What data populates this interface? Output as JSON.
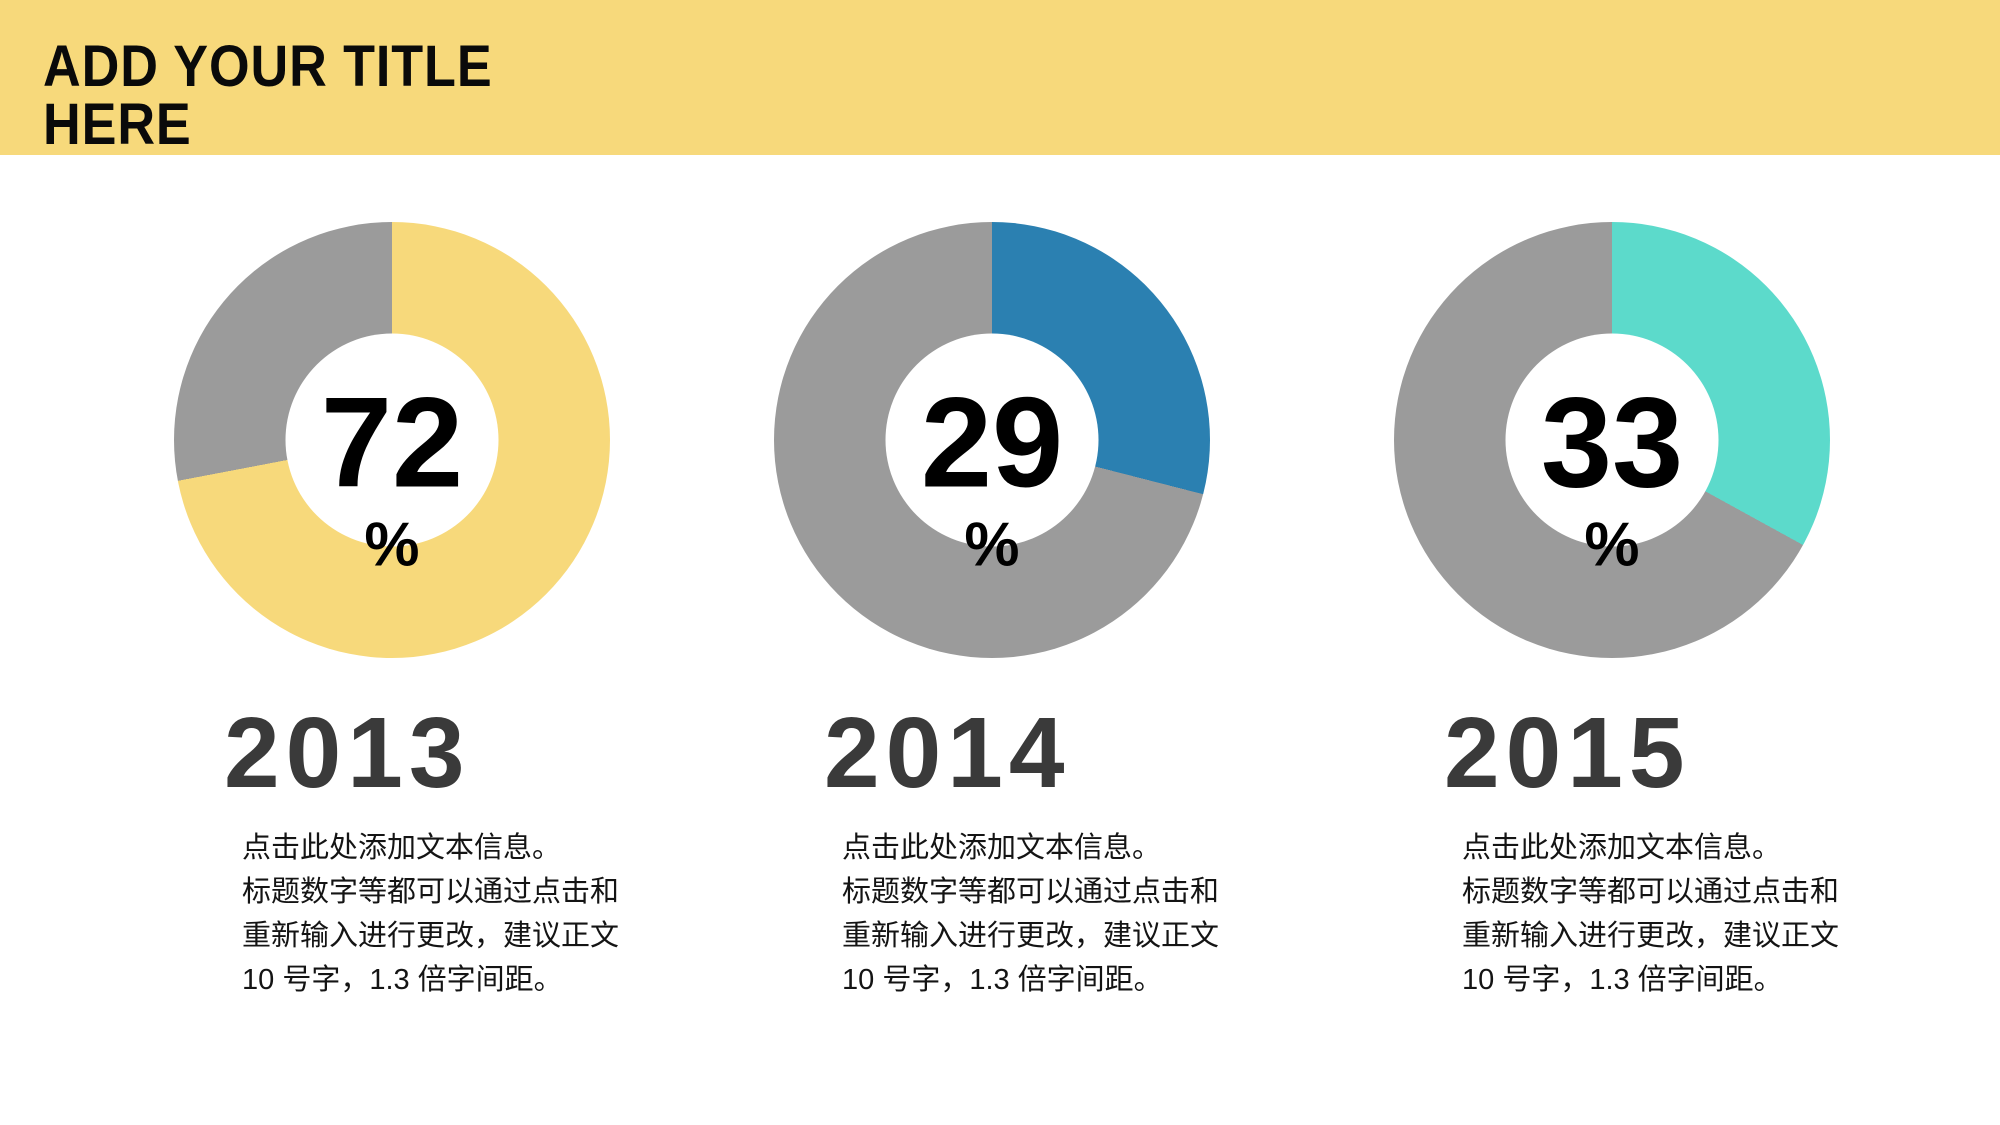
{
  "header": {
    "title": "ADD YOUR TITLE\nHERE",
    "background_color": "#F7D97B"
  },
  "chart_data": [
    {
      "type": "donut",
      "title": "2013",
      "value": 72,
      "unit": "%",
      "slice_color": "#F7D97B",
      "track_color": "#9B9B9B",
      "start": "top",
      "direction": "clockwise",
      "inner_radius_ratio": 0.49
    },
    {
      "type": "donut",
      "title": "2014",
      "value": 29,
      "unit": "%",
      "slice_color": "#2B80B1",
      "track_color": "#9B9B9B",
      "start": "top",
      "direction": "clockwise",
      "inner_radius_ratio": 0.49
    },
    {
      "type": "donut",
      "title": "2015",
      "value": 33,
      "unit": "%",
      "slice_color": "#5CDACB",
      "track_color": "#9B9B9B",
      "start": "top",
      "direction": "clockwise",
      "inner_radius_ratio": 0.49
    }
  ],
  "columns": [
    {
      "value": "72",
      "percent_sign": "%",
      "year": "2013",
      "description": "点击此处添加文本信息。\n标题数字等都可以通过点击和\n重新输入进行更改，建议正文\n10 号字，1.3 倍字间距。"
    },
    {
      "value": "29",
      "percent_sign": "%",
      "year": "2014",
      "description": "点击此处添加文本信息。\n标题数字等都可以通过点击和\n重新输入进行更改，建议正文\n10 号字，1.3 倍字间距。"
    },
    {
      "value": "33",
      "percent_sign": "%",
      "year": "2015",
      "description": "点击此处添加文本信息。\n标题数字等都可以通过点击和\n重新输入进行更改，建议正文\n10 号字，1.3 倍字间距。"
    }
  ]
}
